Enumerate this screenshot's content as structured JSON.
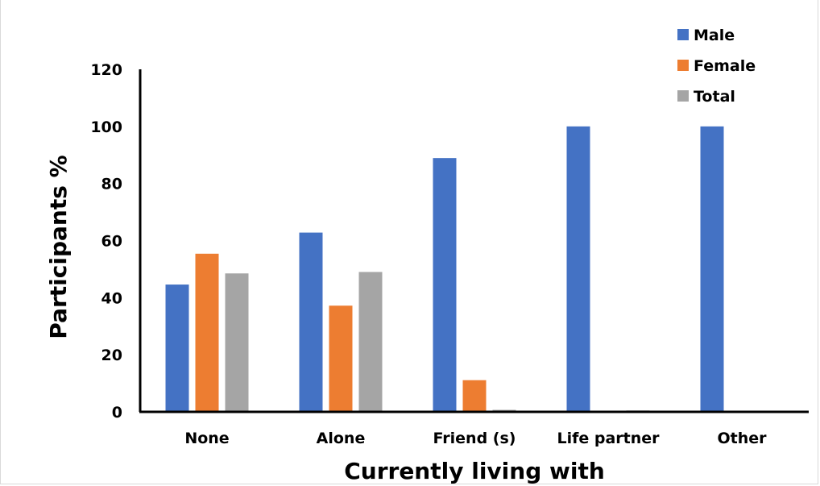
{
  "chart_data": {
    "type": "bar",
    "title": "",
    "xlabel": "Currently living with",
    "ylabel": "Participants %",
    "categories": [
      "None",
      "Alone",
      "Friend (s)",
      "Life partner",
      "Other"
    ],
    "ylim": [
      0,
      120
    ],
    "yticks": [
      0,
      20,
      40,
      60,
      80,
      100,
      120
    ],
    "grid": false,
    "legend_position": "top-right",
    "series": [
      {
        "name": "Male",
        "color": "#4472C4",
        "values": [
          44.6,
          62.8,
          88.9,
          100,
          100
        ]
      },
      {
        "name": "Female",
        "color": "#ED7D31",
        "values": [
          55.4,
          37.2,
          11.1,
          0,
          0
        ]
      },
      {
        "name": "Total",
        "color": "#A5A5A5",
        "values": [
          48.5,
          49.0,
          0.7,
          0.5,
          0
        ]
      }
    ]
  }
}
